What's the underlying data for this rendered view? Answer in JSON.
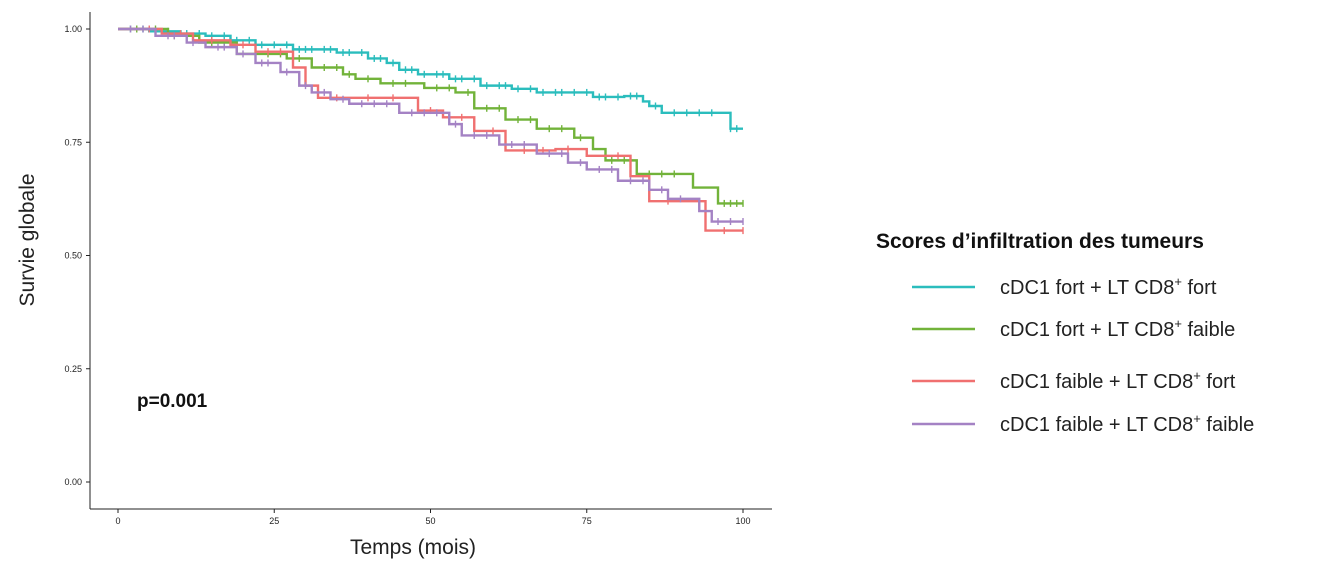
{
  "chart_data": {
    "type": "line",
    "xlabel": "Temps (mois)",
    "ylabel": "Survie globale",
    "xlim": [
      0,
      100
    ],
    "ylim": [
      0,
      1
    ],
    "x_ticks": [
      0,
      25,
      50,
      75,
      100
    ],
    "y_ticks": [
      0.0,
      0.25,
      0.5,
      0.75,
      1.0
    ],
    "x_tick_labels": [
      "0",
      "25",
      "50",
      "75",
      "100"
    ],
    "y_tick_labels": [
      "0.00",
      "0.25",
      "0.50",
      "0.75",
      "1.00"
    ],
    "grid": false,
    "annotation": "p=0.001",
    "legend": {
      "title": "Scores d’infiltration des tumeurs",
      "placement": "right"
    },
    "series": [
      {
        "name": "cDC1 fort + LT CD8+ fort",
        "label_main": "cDC1 fort + LT CD8",
        "label_sup": "+",
        "label_tail": " fort",
        "color": "#2bbdbd",
        "steps": [
          [
            0,
            1.0
          ],
          [
            5,
            0.995
          ],
          [
            10,
            0.99
          ],
          [
            14,
            0.985
          ],
          [
            18,
            0.975
          ],
          [
            22,
            0.965
          ],
          [
            28,
            0.955
          ],
          [
            35,
            0.948
          ],
          [
            40,
            0.935
          ],
          [
            43,
            0.925
          ],
          [
            45,
            0.91
          ],
          [
            48,
            0.9
          ],
          [
            53,
            0.89
          ],
          [
            58,
            0.875
          ],
          [
            63,
            0.868
          ],
          [
            67,
            0.86
          ],
          [
            76,
            0.85
          ],
          [
            81,
            0.852
          ],
          [
            84,
            0.84
          ],
          [
            85,
            0.83
          ],
          [
            87,
            0.815
          ],
          [
            98,
            0.78
          ],
          [
            100,
            0.78
          ]
        ],
        "censors": [
          2,
          4,
          6,
          8,
          11,
          13,
          15,
          17,
          19,
          21,
          23,
          25,
          27,
          29,
          30,
          31,
          33,
          34,
          36,
          37,
          39,
          41,
          42,
          44,
          46,
          47,
          49,
          51,
          52,
          54,
          55,
          57,
          59,
          61,
          62,
          64,
          66,
          68,
          70,
          71,
          73,
          75,
          77,
          78,
          80,
          82,
          83,
          86,
          89,
          91,
          93,
          95,
          98,
          99
        ]
      },
      {
        "name": "cDC1 fort + LT CD8+ faible",
        "label_main": "cDC1 fort + LT CD8",
        "label_sup": "+",
        "label_tail": " faible",
        "color": "#72b33a",
        "steps": [
          [
            0,
            1.0
          ],
          [
            8,
            0.985
          ],
          [
            13,
            0.97
          ],
          [
            19,
            0.945
          ],
          [
            27,
            0.935
          ],
          [
            31,
            0.915
          ],
          [
            36,
            0.9
          ],
          [
            38,
            0.89
          ],
          [
            42,
            0.88
          ],
          [
            49,
            0.87
          ],
          [
            54,
            0.86
          ],
          [
            57,
            0.825
          ],
          [
            62,
            0.8
          ],
          [
            67,
            0.78
          ],
          [
            73,
            0.76
          ],
          [
            76,
            0.735
          ],
          [
            78,
            0.71
          ],
          [
            83,
            0.68
          ],
          [
            92,
            0.65
          ],
          [
            96,
            0.615
          ],
          [
            100,
            0.615
          ]
        ],
        "censors": [
          3,
          6,
          9,
          11,
          15,
          17,
          22,
          24,
          26,
          29,
          33,
          35,
          37,
          40,
          44,
          46,
          51,
          53,
          56,
          59,
          61,
          64,
          66,
          69,
          71,
          74,
          79,
          81,
          85,
          87,
          89,
          97,
          98,
          99,
          100
        ]
      },
      {
        "name": "cDC1 faible + LT CD8+ fort",
        "label_main": "cDC1 faible + LT CD8",
        "label_sup": "+",
        "label_tail": " fort",
        "color": "#f07070",
        "steps": [
          [
            0,
            1.0
          ],
          [
            7,
            0.99
          ],
          [
            12,
            0.975
          ],
          [
            18,
            0.965
          ],
          [
            22,
            0.95
          ],
          [
            28,
            0.915
          ],
          [
            30,
            0.875
          ],
          [
            32,
            0.848
          ],
          [
            38,
            0.848
          ],
          [
            48,
            0.82
          ],
          [
            52,
            0.805
          ],
          [
            57,
            0.775
          ],
          [
            62,
            0.732
          ],
          [
            70,
            0.735
          ],
          [
            75,
            0.72
          ],
          [
            82,
            0.675
          ],
          [
            85,
            0.62
          ],
          [
            90,
            0.62
          ],
          [
            94,
            0.555
          ],
          [
            100,
            0.555
          ]
        ],
        "censors": [
          5,
          10,
          15,
          20,
          24,
          26,
          35,
          40,
          44,
          50,
          55,
          60,
          65,
          68,
          72,
          80,
          88,
          97,
          100
        ]
      },
      {
        "name": "cDC1 faible + LT CD8+ faible",
        "label_main": "cDC1 faible + LT CD8",
        "label_sup": "+",
        "label_tail": " faible",
        "color": "#a482c4",
        "steps": [
          [
            0,
            1.0
          ],
          [
            6,
            0.985
          ],
          [
            11,
            0.97
          ],
          [
            14,
            0.96
          ],
          [
            19,
            0.945
          ],
          [
            22,
            0.925
          ],
          [
            26,
            0.905
          ],
          [
            29,
            0.875
          ],
          [
            31,
            0.86
          ],
          [
            34,
            0.845
          ],
          [
            37,
            0.835
          ],
          [
            45,
            0.815
          ],
          [
            53,
            0.79
          ],
          [
            55,
            0.765
          ],
          [
            61,
            0.745
          ],
          [
            67,
            0.725
          ],
          [
            72,
            0.705
          ],
          [
            75,
            0.69
          ],
          [
            80,
            0.665
          ],
          [
            85,
            0.645
          ],
          [
            88,
            0.625
          ],
          [
            93,
            0.598
          ],
          [
            95,
            0.575
          ],
          [
            100,
            0.575
          ]
        ],
        "censors": [
          2,
          4,
          8,
          9,
          12,
          16,
          17,
          20,
          23,
          24,
          27,
          30,
          33,
          36,
          39,
          41,
          43,
          47,
          49,
          51,
          54,
          57,
          59,
          63,
          65,
          69,
          71,
          74,
          77,
          79,
          82,
          84,
          87,
          90,
          96,
          98,
          100
        ]
      }
    ]
  }
}
